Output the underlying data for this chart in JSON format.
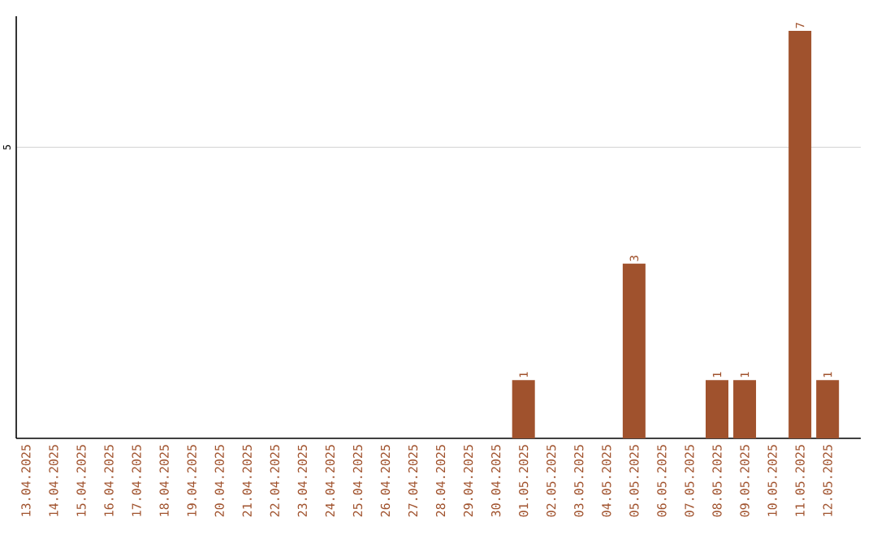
{
  "chart_data": {
    "type": "bar",
    "categories": [
      "13.04.2025",
      "14.04.2025",
      "15.04.2025",
      "16.04.2025",
      "17.04.2025",
      "18.04.2025",
      "19.04.2025",
      "20.04.2025",
      "21.04.2025",
      "22.04.2025",
      "23.04.2025",
      "24.04.2025",
      "25.04.2025",
      "26.04.2025",
      "27.04.2025",
      "28.04.2025",
      "29.04.2025",
      "30.04.2025",
      "01.05.2025",
      "02.05.2025",
      "03.05.2025",
      "04.05.2025",
      "05.05.2025",
      "06.05.2025",
      "07.05.2025",
      "08.05.2025",
      "09.05.2025",
      "10.05.2025",
      "11.05.2025",
      "12.05.2025"
    ],
    "values": [
      null,
      null,
      null,
      null,
      null,
      null,
      null,
      null,
      null,
      null,
      null,
      null,
      null,
      null,
      null,
      null,
      null,
      null,
      1,
      null,
      null,
      null,
      3,
      null,
      null,
      1,
      1,
      null,
      7,
      1
    ],
    "data_labels": true,
    "color": "#a0522d",
    "ylim": [
      0,
      7.25
    ],
    "yticks": [
      5
    ],
    "grid": "y",
    "legend": false
  }
}
